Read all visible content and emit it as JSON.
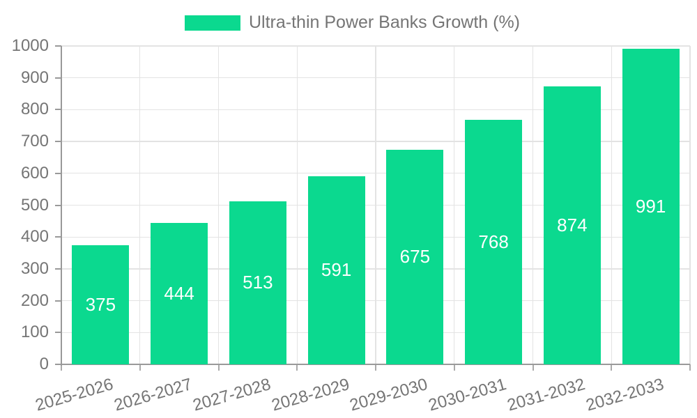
{
  "legend": {
    "label": "Ultra-thin Power Banks Growth (%)",
    "swatch_color": "#0bd98f"
  },
  "colors": {
    "bar": "#0bd98f",
    "axis": "#999999",
    "grid": "#e3e3e3",
    "label_text": "#757575",
    "bar_value_text": "#ffffff",
    "background": "#ffffff"
  },
  "chart_data": {
    "type": "bar",
    "title": "Ultra-thin Power Banks Growth (%)",
    "categories": [
      "2025-2026",
      "2026-2027",
      "2027-2028",
      "2028-2029",
      "2029-2030",
      "2030-2031",
      "2031-2032",
      "2032-2033"
    ],
    "values": [
      375,
      444,
      513,
      591,
      675,
      768,
      874,
      991
    ],
    "series": [
      {
        "name": "Ultra-thin Power Banks Growth (%)",
        "values": [
          375,
          444,
          513,
          591,
          675,
          768,
          874,
          991
        ]
      }
    ],
    "xlabel": "",
    "ylabel": "",
    "ylim": [
      0,
      1000
    ],
    "ytick_step": 100,
    "ytick_labels": [
      "0",
      "100",
      "200",
      "300",
      "400",
      "500",
      "600",
      "700",
      "800",
      "900",
      "1000"
    ],
    "grid": true,
    "legend_position": "top-center",
    "value_labels_position": "inside-center",
    "x_tick_rotation_deg": -16,
    "bar_color": "#0bd98f"
  }
}
